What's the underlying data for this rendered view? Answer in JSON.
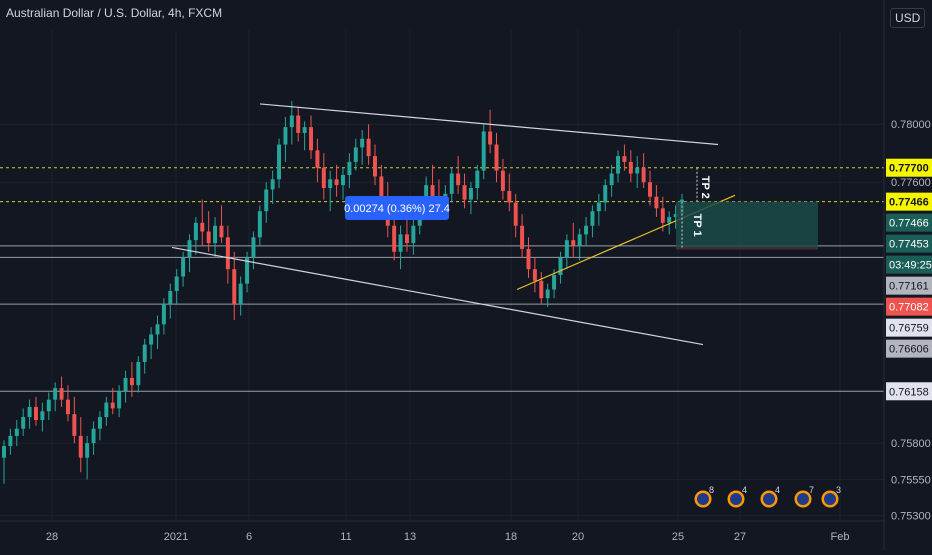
{
  "header": {
    "title": "Australian Dollar / U.S. Dollar, 4h, FXCM",
    "currency": "USD"
  },
  "colors": {
    "background": "#131722",
    "up": "#26a69a",
    "down": "#ef5350",
    "grid": "#1e222d",
    "axis_text": "#b2b5be",
    "trendline": "#d1d4dc",
    "support_line": "#e6c229",
    "dotted_level": "#e6e629",
    "tp_zone": "#1b4b48",
    "sl_zone": "#5a2a30",
    "measure_tooltip": "#2962ff"
  },
  "chart_data": {
    "type": "candlestick",
    "symbol": "AUDUSD",
    "timeframe": "4h",
    "ylim": [
      0.7527,
      0.7865
    ],
    "y_ticks": [
      "0.78000",
      "0.77600",
      "0.75800",
      "0.75550",
      "0.75300"
    ],
    "x_ticks": [
      "28",
      "2021",
      "6",
      "11",
      "13",
      "18",
      "20",
      "25",
      "27",
      "Feb"
    ],
    "price_labels": [
      {
        "value": 0.777,
        "text": "0.77700",
        "style": "yellow"
      },
      {
        "value": 0.77466,
        "text": "0.77466",
        "style": "yellow"
      },
      {
        "value": 0.77466,
        "text": "0.77466",
        "style": "teal"
      },
      {
        "value": 0.77453,
        "text": "0.77453",
        "style": "teal"
      },
      {
        "value": 0.7733,
        "text": "03:49:25",
        "style": "teal"
      },
      {
        "value": 0.77161,
        "text": "0.77161",
        "style": "gray"
      },
      {
        "value": 0.77082,
        "text": "0.77082",
        "style": "red"
      },
      {
        "value": 0.76759,
        "text": "0.76759",
        "style": "white"
      },
      {
        "value": 0.76606,
        "text": "0.76606",
        "style": "gray"
      },
      {
        "value": 0.76158,
        "text": "0.76158",
        "style": "white"
      }
    ],
    "horizontal_lines": [
      0.777,
      0.77466,
      0.77161,
      0.77082,
      0.76759,
      0.76158
    ],
    "trendlines": [
      {
        "from": [
          "6",
          0.7814
        ],
        "to": [
          "25+",
          0.7786
        ],
        "color": "trendline"
      },
      {
        "from": [
          "2021-",
          0.7715
        ],
        "to": [
          "25+",
          0.7648
        ],
        "color": "trendline"
      },
      {
        "from": [
          "18",
          0.7686
        ],
        "to": [
          "25+",
          0.7751
        ],
        "color": "support_line"
      }
    ],
    "position_tool": {
      "entry": 0.77453,
      "target": 0.77466,
      "stop": 0.77325,
      "labels": [
        "TP 1",
        "TP 2"
      ]
    },
    "measure_label": "0.00274 (0.36%) 27.4",
    "ohlc": [
      [
        0.757,
        0.7582,
        0.7552,
        0.7578
      ],
      [
        0.7578,
        0.759,
        0.7572,
        0.7585
      ],
      [
        0.7585,
        0.7596,
        0.7578,
        0.759
      ],
      [
        0.759,
        0.7604,
        0.7585,
        0.7598
      ],
      [
        0.7598,
        0.761,
        0.759,
        0.7605
      ],
      [
        0.7605,
        0.7612,
        0.7592,
        0.7596
      ],
      [
        0.7596,
        0.7608,
        0.7588,
        0.7602
      ],
      [
        0.7602,
        0.7615,
        0.7596,
        0.761
      ],
      [
        0.761,
        0.7622,
        0.7602,
        0.7618
      ],
      [
        0.7618,
        0.7626,
        0.7605,
        0.761
      ],
      [
        0.761,
        0.762,
        0.7595,
        0.76
      ],
      [
        0.76,
        0.7612,
        0.758,
        0.7585
      ],
      [
        0.7585,
        0.7598,
        0.756,
        0.757
      ],
      [
        0.757,
        0.7585,
        0.7555,
        0.758
      ],
      [
        0.758,
        0.7595,
        0.7572,
        0.759
      ],
      [
        0.759,
        0.7602,
        0.7582,
        0.7598
      ],
      [
        0.7598,
        0.7612,
        0.7592,
        0.7608
      ],
      [
        0.7608,
        0.7618,
        0.76,
        0.7604
      ],
      [
        0.7604,
        0.762,
        0.7598,
        0.7616
      ],
      [
        0.7616,
        0.763,
        0.7608,
        0.7625
      ],
      [
        0.7625,
        0.7636,
        0.7612,
        0.762
      ],
      [
        0.762,
        0.764,
        0.7615,
        0.7636
      ],
      [
        0.7636,
        0.7652,
        0.7628,
        0.7648
      ],
      [
        0.7648,
        0.766,
        0.7638,
        0.7655
      ],
      [
        0.7655,
        0.7668,
        0.7645,
        0.7662
      ],
      [
        0.7662,
        0.768,
        0.7655,
        0.7676
      ],
      [
        0.7676,
        0.769,
        0.7666,
        0.7685
      ],
      [
        0.7685,
        0.77,
        0.7676,
        0.7695
      ],
      [
        0.7695,
        0.7712,
        0.7688,
        0.7708
      ],
      [
        0.7708,
        0.7724,
        0.7698,
        0.772
      ],
      [
        0.772,
        0.7736,
        0.771,
        0.7732
      ],
      [
        0.7732,
        0.7748,
        0.7716,
        0.7726
      ],
      [
        0.7726,
        0.774,
        0.7712,
        0.7718
      ],
      [
        0.7718,
        0.7736,
        0.7708,
        0.773
      ],
      [
        0.773,
        0.7744,
        0.7718,
        0.7722
      ],
      [
        0.7722,
        0.773,
        0.769,
        0.77
      ],
      [
        0.77,
        0.7712,
        0.7665,
        0.7676
      ],
      [
        0.7676,
        0.7695,
        0.7668,
        0.769
      ],
      [
        0.769,
        0.7712,
        0.7684,
        0.7708
      ],
      [
        0.7708,
        0.7726,
        0.77,
        0.7722
      ],
      [
        0.7722,
        0.7744,
        0.7716,
        0.774
      ],
      [
        0.774,
        0.776,
        0.7732,
        0.7755
      ],
      [
        0.7755,
        0.7768,
        0.7745,
        0.7762
      ],
      [
        0.7762,
        0.779,
        0.7756,
        0.7786
      ],
      [
        0.7786,
        0.7805,
        0.7774,
        0.7798
      ],
      [
        0.7798,
        0.7816,
        0.7786,
        0.7806
      ],
      [
        0.7806,
        0.7812,
        0.7788,
        0.7794
      ],
      [
        0.7794,
        0.7802,
        0.7782,
        0.7798
      ],
      [
        0.7798,
        0.7806,
        0.7776,
        0.7782
      ],
      [
        0.7782,
        0.779,
        0.776,
        0.777
      ],
      [
        0.777,
        0.778,
        0.7748,
        0.7756
      ],
      [
        0.7756,
        0.7768,
        0.774,
        0.7762
      ],
      [
        0.7762,
        0.7772,
        0.775,
        0.7758
      ],
      [
        0.7758,
        0.777,
        0.7748,
        0.7765
      ],
      [
        0.7765,
        0.778,
        0.7756,
        0.7774
      ],
      [
        0.7774,
        0.779,
        0.7768,
        0.7784
      ],
      [
        0.7784,
        0.7796,
        0.7772,
        0.779
      ],
      [
        0.779,
        0.78,
        0.7772,
        0.7778
      ],
      [
        0.7778,
        0.7786,
        0.7758,
        0.7764
      ],
      [
        0.7764,
        0.7772,
        0.7742,
        0.775
      ],
      [
        0.775,
        0.776,
        0.7722,
        0.773
      ],
      [
        0.773,
        0.774,
        0.7706,
        0.7712
      ],
      [
        0.7712,
        0.773,
        0.77,
        0.7724
      ],
      [
        0.7724,
        0.774,
        0.7712,
        0.7718
      ],
      [
        0.7718,
        0.7735,
        0.771,
        0.773
      ],
      [
        0.773,
        0.775,
        0.7724,
        0.7746
      ],
      [
        0.7746,
        0.7764,
        0.7736,
        0.7758
      ],
      [
        0.7758,
        0.7772,
        0.7744,
        0.775
      ],
      [
        0.775,
        0.7762,
        0.7734,
        0.774
      ],
      [
        0.774,
        0.7758,
        0.7734,
        0.7752
      ],
      [
        0.7752,
        0.777,
        0.7746,
        0.7766
      ],
      [
        0.7766,
        0.7778,
        0.7752,
        0.7758
      ],
      [
        0.7758,
        0.7766,
        0.7742,
        0.7748
      ],
      [
        0.7748,
        0.776,
        0.7738,
        0.7756
      ],
      [
        0.7756,
        0.7772,
        0.7748,
        0.7768
      ],
      [
        0.7768,
        0.78,
        0.7762,
        0.7795
      ],
      [
        0.7795,
        0.781,
        0.778,
        0.7786
      ],
      [
        0.7786,
        0.7794,
        0.776,
        0.7768
      ],
      [
        0.7768,
        0.7776,
        0.7748,
        0.7754
      ],
      [
        0.7754,
        0.7766,
        0.774,
        0.7746
      ],
      [
        0.7746,
        0.7752,
        0.7722,
        0.773
      ],
      [
        0.773,
        0.7738,
        0.7708,
        0.7714
      ],
      [
        0.7714,
        0.7722,
        0.7694,
        0.77
      ],
      [
        0.77,
        0.7708,
        0.7684,
        0.7692
      ],
      [
        0.7692,
        0.7698,
        0.7676,
        0.768
      ],
      [
        0.768,
        0.769,
        0.7674,
        0.7686
      ],
      [
        0.7686,
        0.77,
        0.768,
        0.7696
      ],
      [
        0.7696,
        0.7712,
        0.769,
        0.7708
      ],
      [
        0.7708,
        0.7724,
        0.77,
        0.772
      ],
      [
        0.772,
        0.7732,
        0.7708,
        0.7716
      ],
      [
        0.7716,
        0.7728,
        0.7706,
        0.7724
      ],
      [
        0.7724,
        0.7736,
        0.7716,
        0.773
      ],
      [
        0.773,
        0.7744,
        0.7722,
        0.774
      ],
      [
        0.774,
        0.7752,
        0.773,
        0.7746
      ],
      [
        0.7746,
        0.7762,
        0.774,
        0.7758
      ],
      [
        0.7758,
        0.7772,
        0.775,
        0.7766
      ],
      [
        0.7766,
        0.7782,
        0.776,
        0.7778
      ],
      [
        0.7778,
        0.7786,
        0.7768,
        0.7774
      ],
      [
        0.7774,
        0.7782,
        0.776,
        0.7766
      ],
      [
        0.7766,
        0.7778,
        0.7756,
        0.777
      ],
      [
        0.777,
        0.778,
        0.7756,
        0.776
      ],
      [
        0.776,
        0.7768,
        0.7744,
        0.775
      ],
      [
        0.775,
        0.7758,
        0.7736,
        0.7742
      ],
      [
        0.7742,
        0.775,
        0.7726,
        0.7732
      ],
      [
        0.7732,
        0.774,
        0.7724,
        0.7736
      ],
      [
        0.7736,
        0.7744,
        0.7728,
        0.7738
      ],
      [
        0.7738,
        0.7752,
        0.7732,
        0.7748
      ]
    ]
  },
  "event_flags": [
    {
      "country": "US",
      "count": "8"
    },
    {
      "country": "US",
      "count": "4"
    },
    {
      "country": "US",
      "count": "4"
    },
    {
      "country": "US",
      "count": "7"
    },
    {
      "country": "US",
      "count": "3"
    }
  ]
}
